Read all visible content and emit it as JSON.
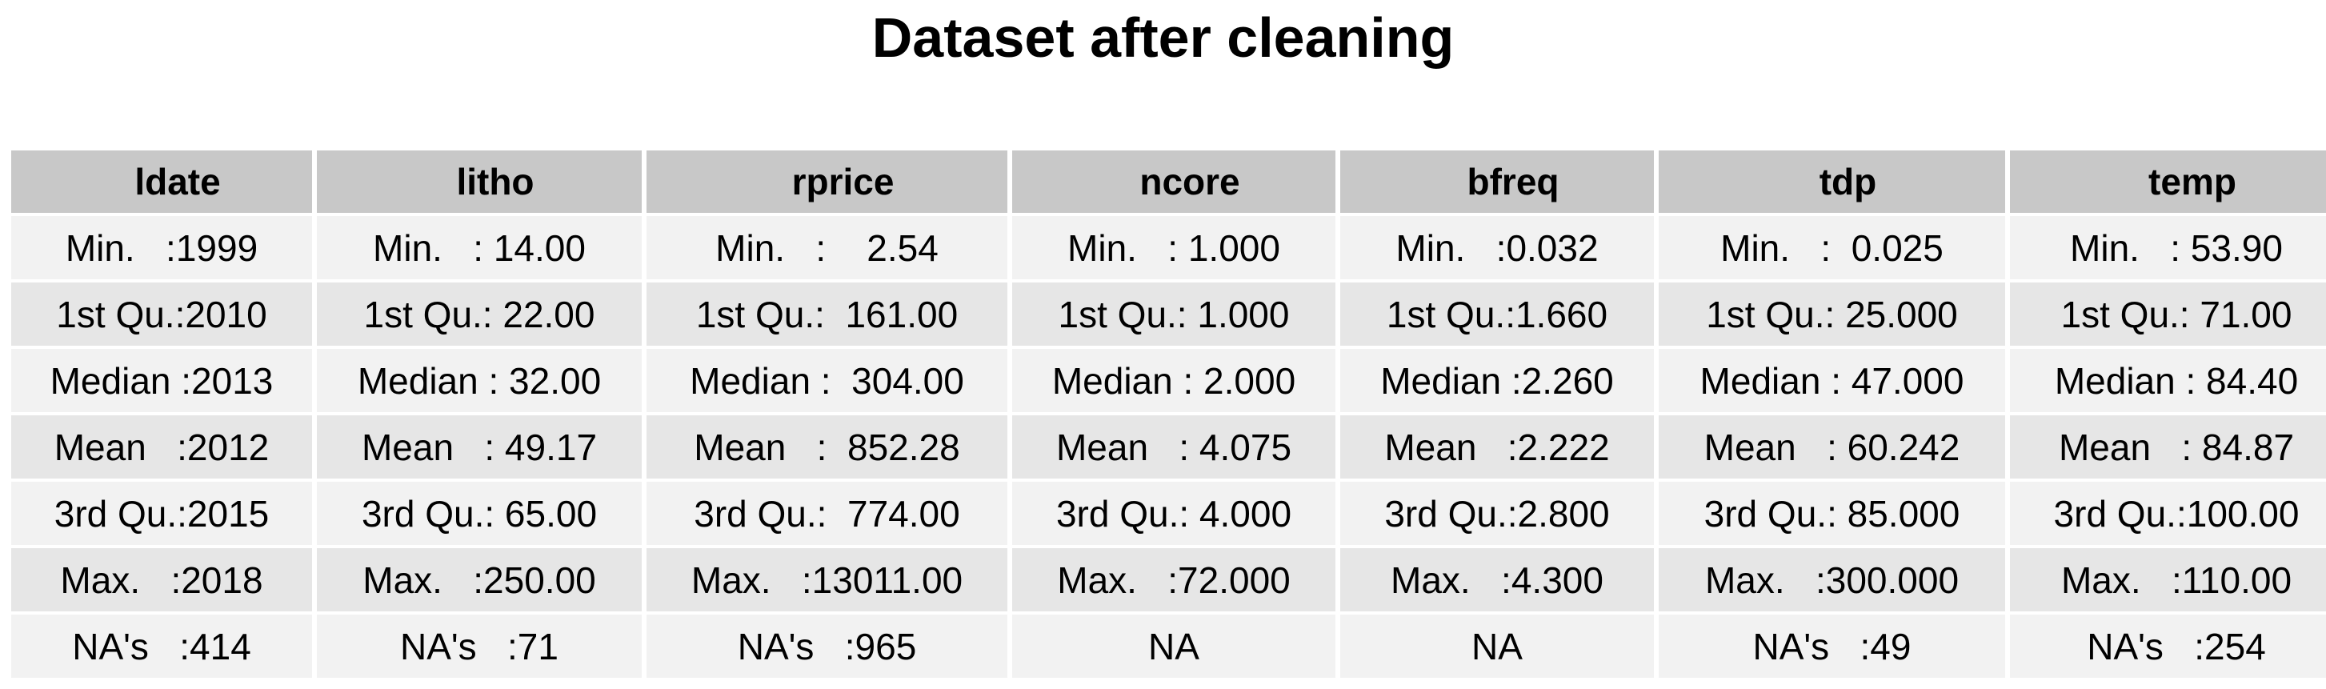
{
  "title": "Dataset after cleaning",
  "columns": [
    "ldate",
    "litho",
    "rprice",
    "ncore",
    "bfreq",
    "tdp",
    "temp"
  ],
  "rows": [
    [
      "Min.   :1999",
      "Min.   : 14.00",
      "Min.   :    2.54",
      "Min.   : 1.000",
      "Min.   :0.032",
      "Min.   :  0.025",
      "Min.   : 53.90"
    ],
    [
      "1st Qu.:2010",
      "1st Qu.: 22.00",
      "1st Qu.:  161.00",
      "1st Qu.: 1.000",
      "1st Qu.:1.660",
      "1st Qu.: 25.000",
      "1st Qu.: 71.00"
    ],
    [
      "Median :2013",
      "Median : 32.00",
      "Median :  304.00",
      "Median : 2.000",
      "Median :2.260",
      "Median : 47.000",
      "Median : 84.40"
    ],
    [
      "Mean   :2012",
      "Mean   : 49.17",
      "Mean   :  852.28",
      "Mean   : 4.075",
      "Mean   :2.222",
      "Mean   : 60.242",
      "Mean   : 84.87"
    ],
    [
      "3rd Qu.:2015",
      "3rd Qu.: 65.00",
      "3rd Qu.:  774.00",
      "3rd Qu.: 4.000",
      "3rd Qu.:2.800",
      "3rd Qu.: 85.000",
      "3rd Qu.:100.00"
    ],
    [
      "Max.   :2018",
      "Max.   :250.00",
      "Max.   :13011.00",
      "Max.   :72.000",
      "Max.   :4.300",
      "Max.   :300.000",
      "Max.   :110.00"
    ],
    [
      "NA's   :414",
      "NA's   :71",
      "NA's   :965",
      "NA",
      "NA",
      "NA's   :49",
      "NA's   :254"
    ]
  ]
}
